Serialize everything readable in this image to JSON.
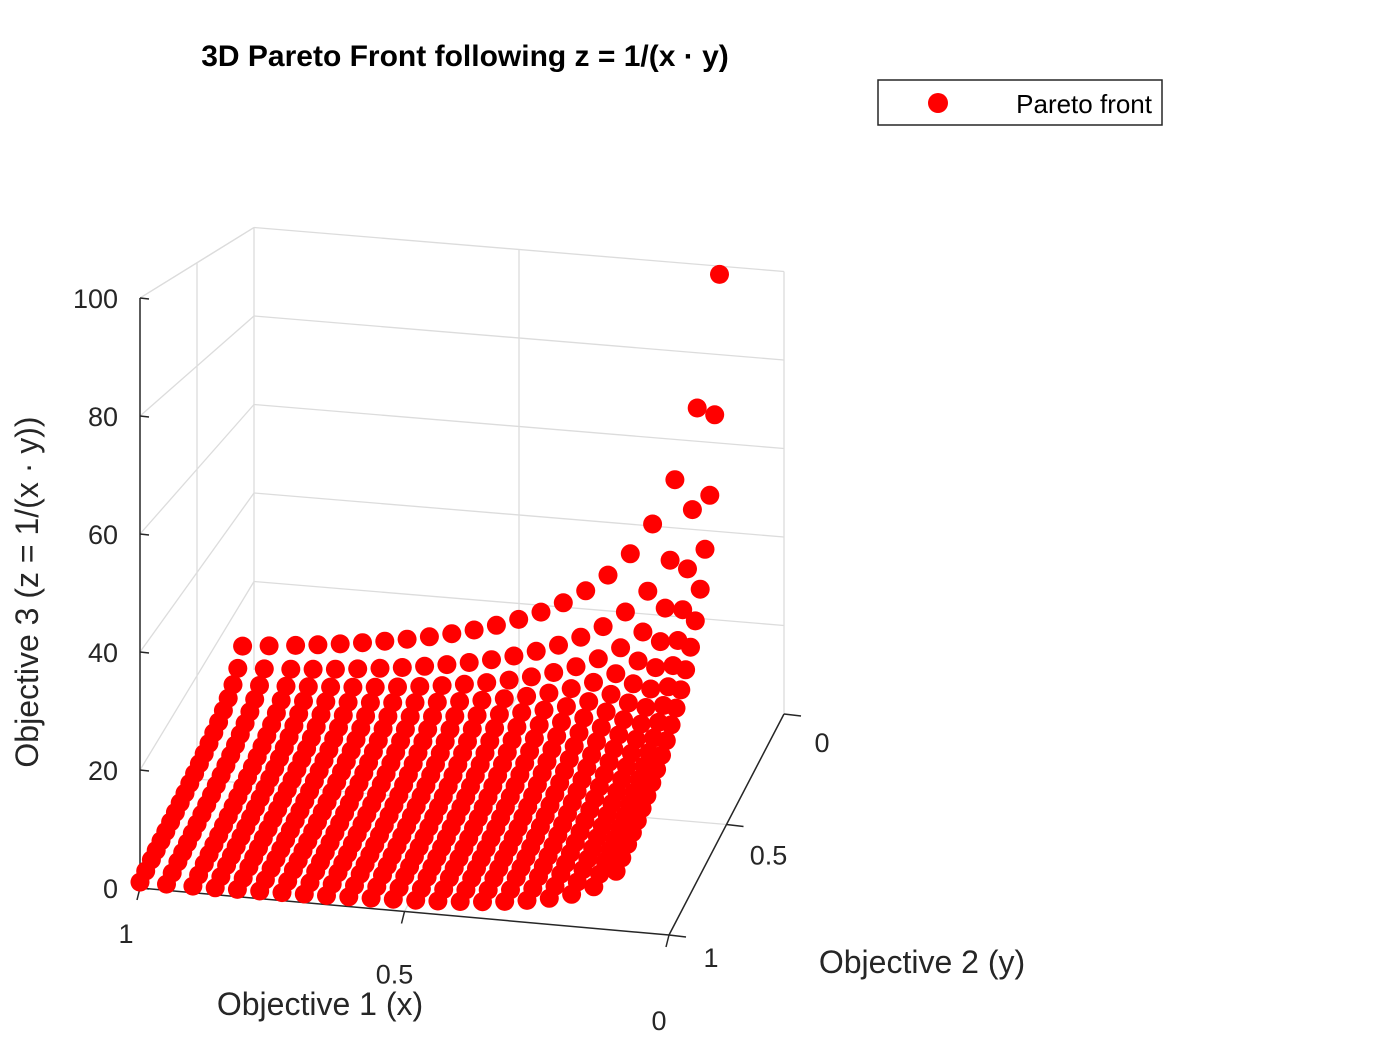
{
  "chart_data": {
    "type": "scatter",
    "title": "3D Pareto Front following z = 1/(x · y)",
    "xlabel": "Objective 1 (x)",
    "ylabel": "Objective 2 (y)",
    "zlabel": "Objective 3 (z = 1/(x · y))",
    "xlim": [
      0,
      1
    ],
    "ylim": [
      0,
      1
    ],
    "zlim": [
      0,
      100
    ],
    "x_ticks": [
      "1",
      "0.5",
      "0"
    ],
    "y_ticks": [
      "0",
      "0.5",
      "1"
    ],
    "z_ticks": [
      "0",
      "20",
      "40",
      "60",
      "80",
      "100"
    ],
    "grid": true,
    "view": "3d-perspective",
    "legend": {
      "placement": "top-right-outside",
      "entries": [
        "Pareto front"
      ]
    },
    "series": [
      {
        "name": "Pareto front",
        "color": "#ff0000",
        "marker": "filled-circle",
        "x_values": [
          0.1,
          0.1421,
          0.1842,
          0.2263,
          0.2684,
          0.3105,
          0.3526,
          0.3947,
          0.4368,
          0.4789,
          0.5211,
          0.5632,
          0.6053,
          0.6474,
          0.6895,
          0.7316,
          0.7737,
          0.8158,
          0.8579,
          0.9,
          0.95,
          1.0
        ],
        "y_values": [
          0.1,
          0.1421,
          0.1842,
          0.2263,
          0.2684,
          0.3105,
          0.3526,
          0.3947,
          0.4368,
          0.4789,
          0.5211,
          0.5632,
          0.6053,
          0.6474,
          0.6895,
          0.7316,
          0.7737,
          0.8158,
          0.8579,
          0.9,
          0.95,
          1.0
        ],
        "z_formula": "z = 1/(x · y) for every (x, y) grid pair"
      }
    ]
  },
  "colors": {
    "marker": "#ff0000",
    "grid": "#dcdcdc",
    "axis": "#262626"
  }
}
